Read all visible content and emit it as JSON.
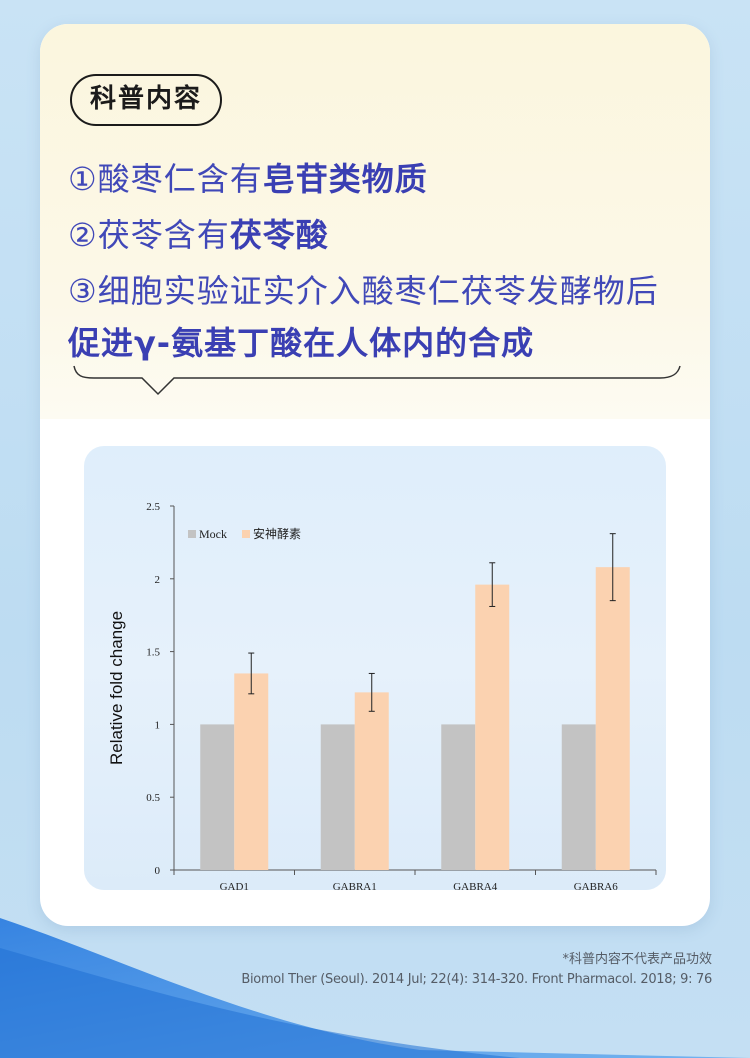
{
  "badge": "科普内容",
  "lines": {
    "l1_plain": "①酸枣仁含有",
    "l1_bold": "皂苷类物质",
    "l2_plain": "②茯苓含有",
    "l2_bold": "茯苓酸",
    "l3_plain": "③细胞实验证实介入酸枣仁茯苓发酵物后",
    "l4_bold": "促进γ-氨基丁酸在人体内的合成"
  },
  "colors": {
    "accent": "#3a3fb3",
    "mock_bar": "#c3c3c3",
    "product_bar": "#fbd2b0"
  },
  "chart_data": {
    "type": "bar",
    "categories": [
      "GAD1",
      "GABRA1",
      "GABRA4",
      "GABRA6"
    ],
    "series": [
      {
        "name": "Mock",
        "values": [
          1,
          1,
          1,
          1
        ]
      },
      {
        "name": "安神酵素",
        "values": [
          1.35,
          1.22,
          1.96,
          2.08
        ],
        "error": [
          0.14,
          0.13,
          0.15,
          0.23
        ]
      }
    ],
    "ylabel": "Relative fold change",
    "xlabel": "",
    "ylim": [
      0,
      2.5
    ],
    "yticks": [
      "0",
      "0.5",
      "1",
      "1.5",
      "2",
      "2.5"
    ],
    "legend": "top-left",
    "grid": false
  },
  "footnote": "*科普内容不代表产品功效",
  "reference": "Biomol Ther (Seoul). 2014 Jul; 22(4): 314-320. Front Pharmacol. 2018; 9: 76"
}
